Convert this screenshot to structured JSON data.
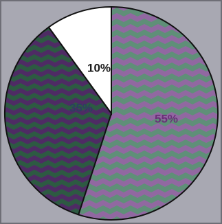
{
  "chart_data": {
    "type": "pie",
    "slices": [
      {
        "label": "55%",
        "value": 55,
        "color": "#5f8f78",
        "alt_color": "#9a62a8",
        "label_color": "#6a2f78"
      },
      {
        "label": "35%",
        "value": 35,
        "color": "#2d5a42",
        "alt_color": "#53236a",
        "label_color": "#2c3f60"
      },
      {
        "label": "10%",
        "value": 10,
        "color": "#ffffff",
        "alt_color": "#ffffff",
        "label_color": "#1a1a1a"
      }
    ],
    "legend": "none",
    "grid": false
  },
  "colors": {
    "background": "#a8a8b2",
    "frame": "#6e6e76",
    "outline": "#111111"
  }
}
